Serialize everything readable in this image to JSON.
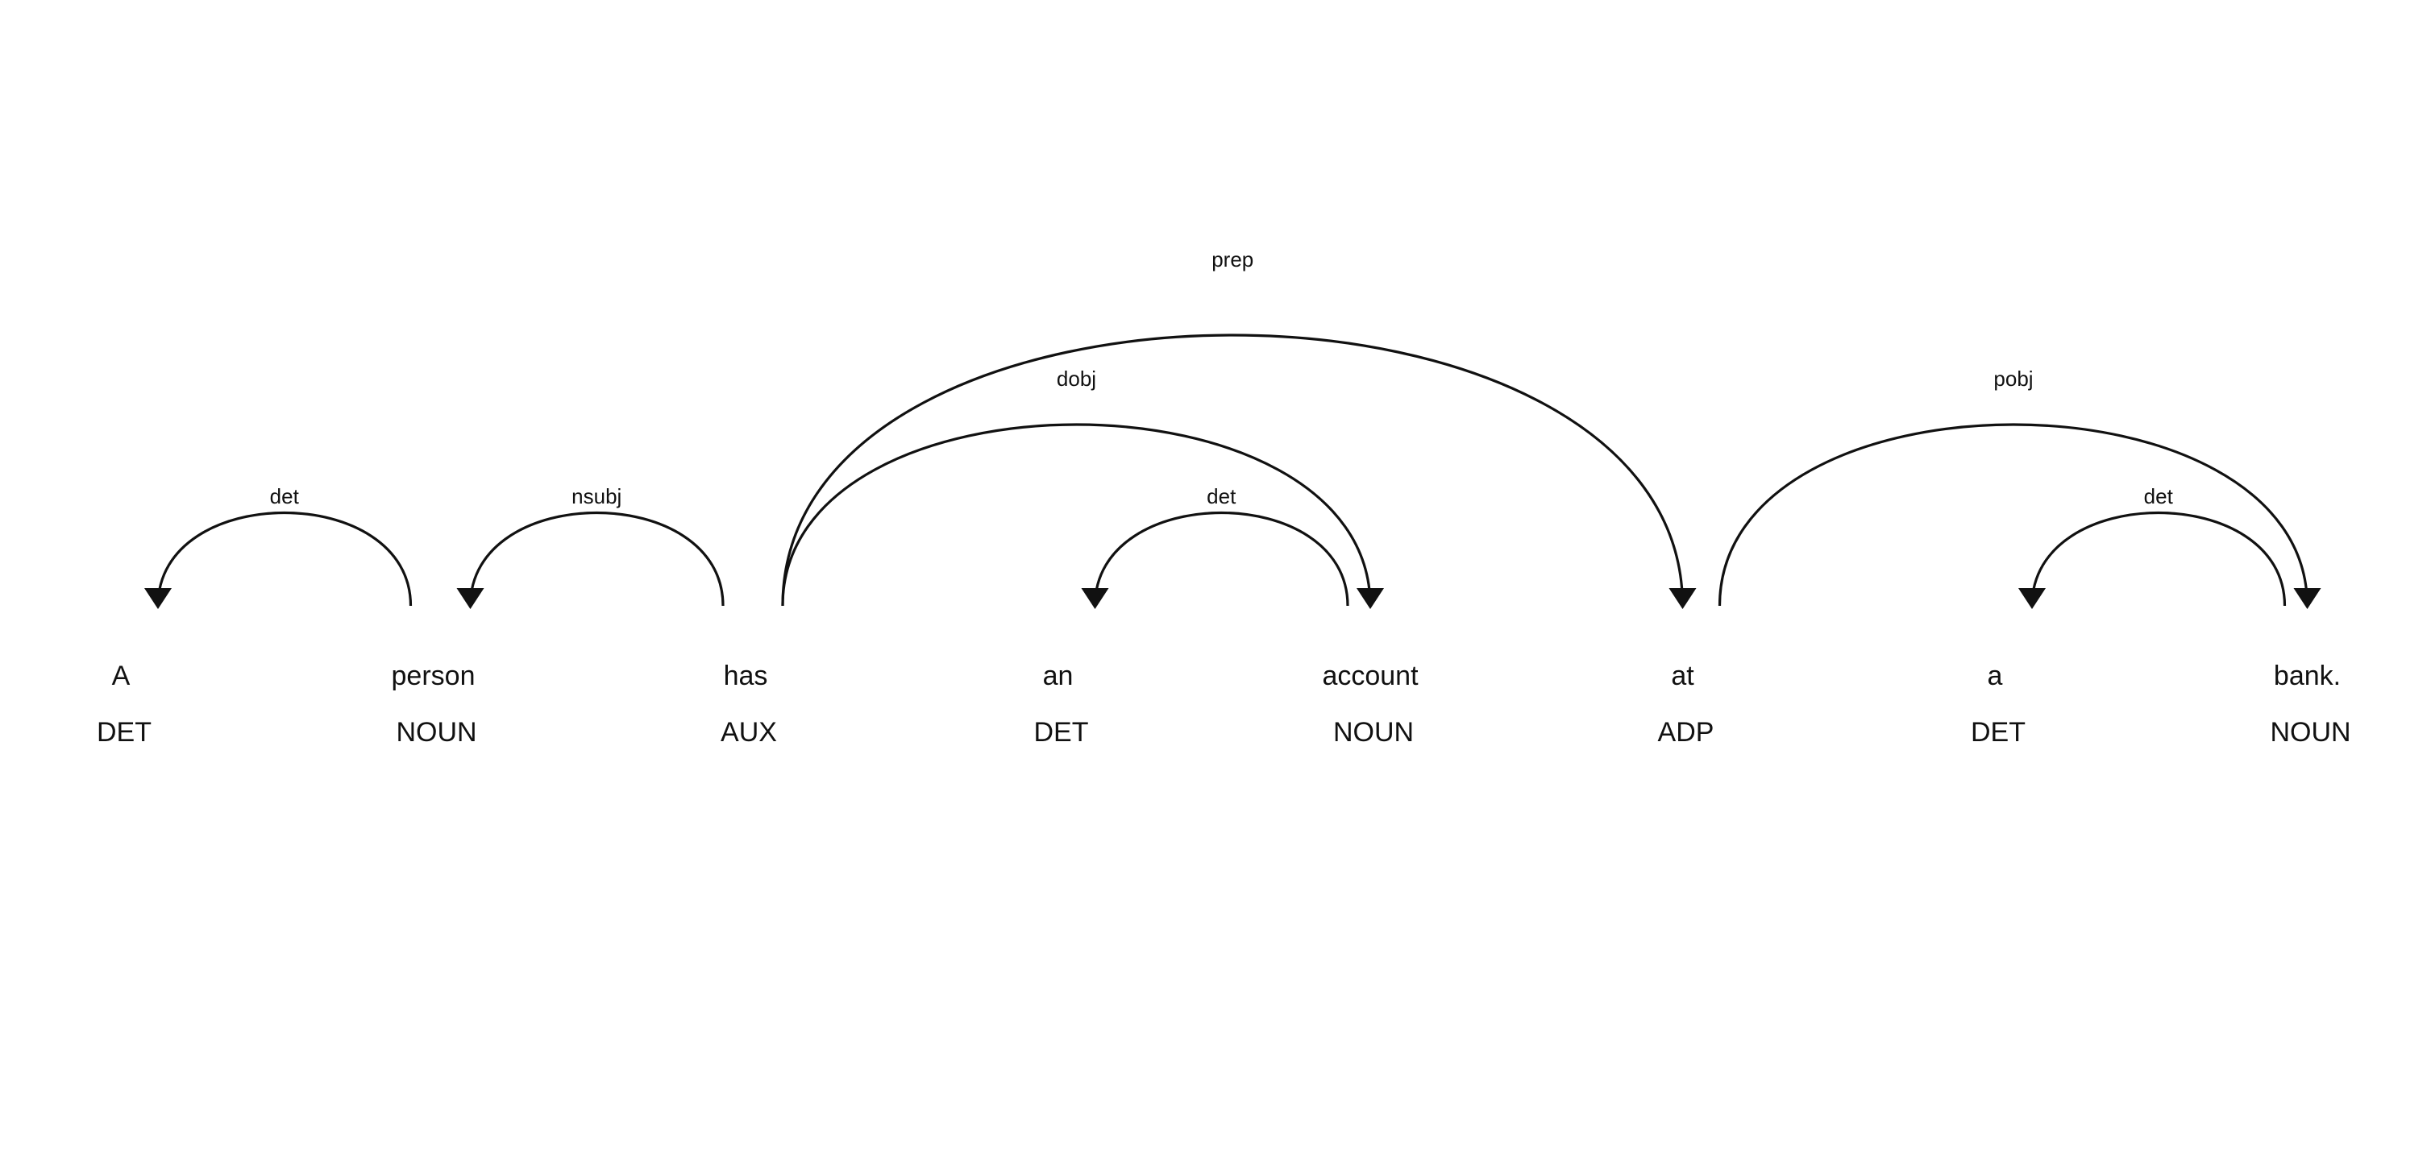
{
  "tokens": [
    {
      "text": "A",
      "tag": "DET"
    },
    {
      "text": "person",
      "tag": "NOUN"
    },
    {
      "text": "has",
      "tag": "AUX"
    },
    {
      "text": "an",
      "tag": "DET"
    },
    {
      "text": "account",
      "tag": "NOUN"
    },
    {
      "text": "at",
      "tag": "ADP"
    },
    {
      "text": "a",
      "tag": "DET"
    },
    {
      "text": "bank.",
      "tag": "NOUN"
    }
  ],
  "arcs": [
    {
      "label": "det",
      "head": 1,
      "dependent": 0
    },
    {
      "label": "nsubj",
      "head": 2,
      "dependent": 1
    },
    {
      "label": "dobj",
      "head": 2,
      "dependent": 4
    },
    {
      "label": "prep",
      "head": 2,
      "dependent": 5
    },
    {
      "label": "det",
      "head": 4,
      "dependent": 3
    },
    {
      "label": "pobj",
      "head": 5,
      "dependent": 7
    },
    {
      "label": "det",
      "head": 7,
      "dependent": 6
    }
  ],
  "colors": {
    "foreground": "#111111",
    "background": "#ffffff"
  }
}
